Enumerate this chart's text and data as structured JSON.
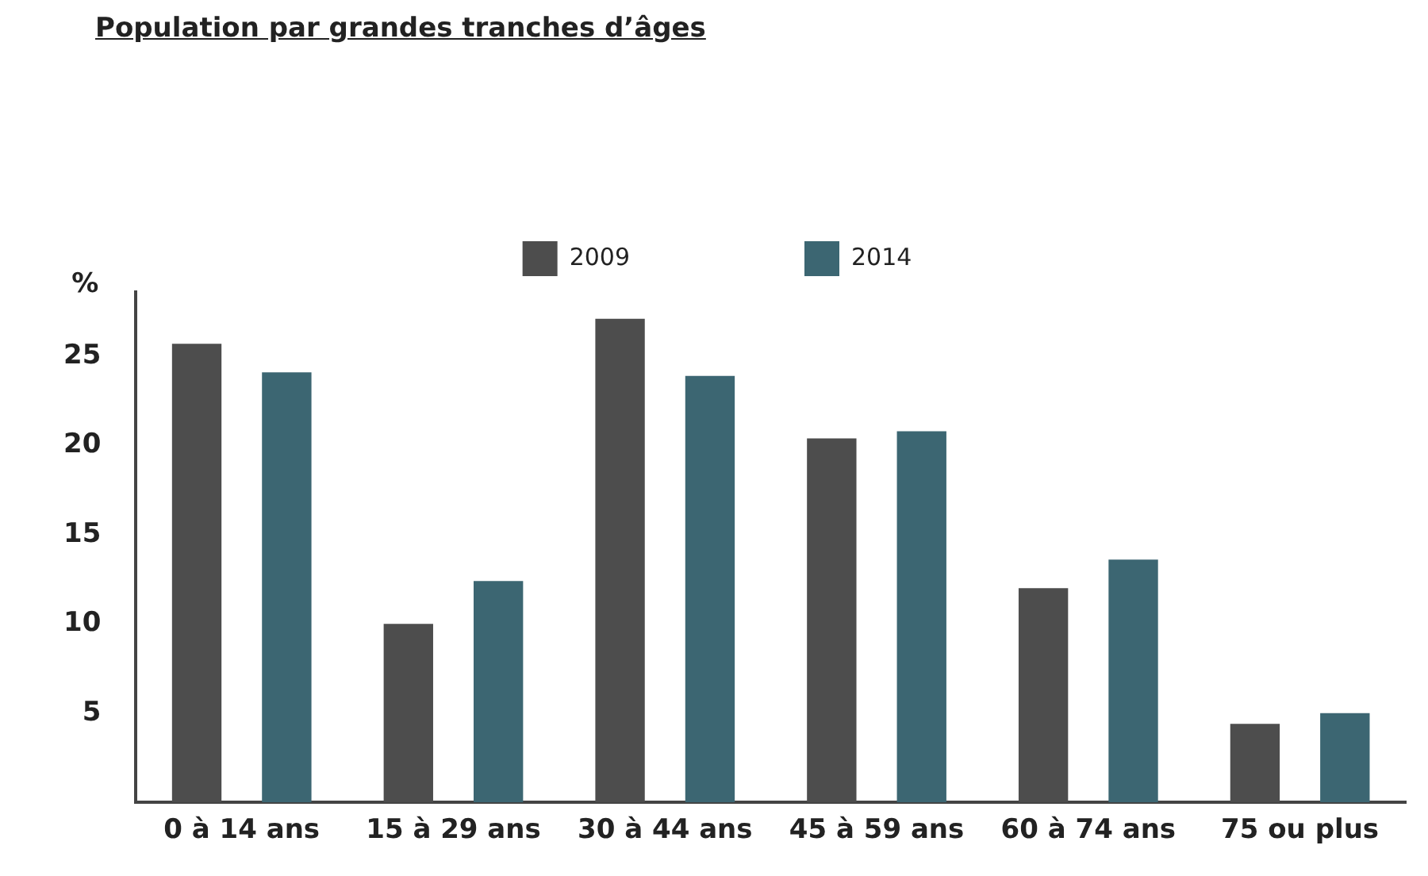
{
  "chart_data": {
    "type": "bar",
    "title": "Population par grandes tranches d’âges",
    "ylabel": "%",
    "categories": [
      "0 à 14 ans",
      "15 à 29 ans",
      "30 à 44 ans",
      "45 à 59 ans",
      "60 à 74 ans",
      "75 ou plus"
    ],
    "series": [
      {
        "name": "2009",
        "color": "#4d4d4d",
        "values": [
          25.7,
          10.0,
          27.1,
          20.4,
          12.0,
          4.4
        ]
      },
      {
        "name": "2014",
        "color": "#3c6672",
        "values": [
          24.1,
          12.4,
          23.9,
          20.8,
          13.6,
          5.0
        ]
      }
    ],
    "ylim": [
      0,
      28.6
    ],
    "yticks": [
      5,
      10,
      15,
      20,
      25
    ],
    "grid": false,
    "legend": "top"
  }
}
